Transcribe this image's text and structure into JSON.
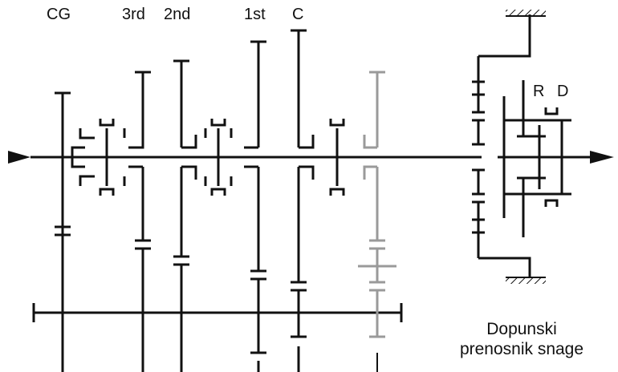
{
  "labels": {
    "cg": "CG",
    "third": "3rd",
    "second": "2nd",
    "first": "1st",
    "c": "C",
    "r": "R",
    "d": "D"
  },
  "caption": {
    "line1": "Dopunski",
    "line2": "prenosnik snage"
  },
  "colors": {
    "ink": "#111111",
    "inactive": "#9a9a9a"
  }
}
